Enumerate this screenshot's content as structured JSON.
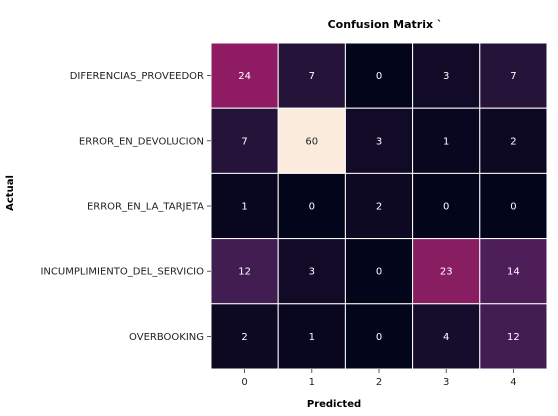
{
  "chart_data": {
    "type": "heatmap",
    "title": "Confusion Matrix `",
    "xlabel": "Predicted",
    "ylabel": "Actual",
    "x_categories": [
      "0",
      "1",
      "2",
      "3",
      "4"
    ],
    "y_categories": [
      "DIFERENCIAS_PROVEEDOR",
      "ERROR_EN_DEVOLUCION",
      "ERROR_EN_LA_TARJETA",
      "INCUMPLIMIENTO_DEL_SERVICIO",
      "OVERBOOKING"
    ],
    "values": [
      [
        24,
        7,
        0,
        3,
        7
      ],
      [
        7,
        60,
        3,
        1,
        2
      ],
      [
        1,
        0,
        2,
        0,
        0
      ],
      [
        12,
        3,
        0,
        23,
        14
      ],
      [
        2,
        1,
        0,
        4,
        12
      ]
    ],
    "value_range": [
      0,
      60
    ],
    "colormap": "rocket",
    "grid": true,
    "colorbar": false
  }
}
